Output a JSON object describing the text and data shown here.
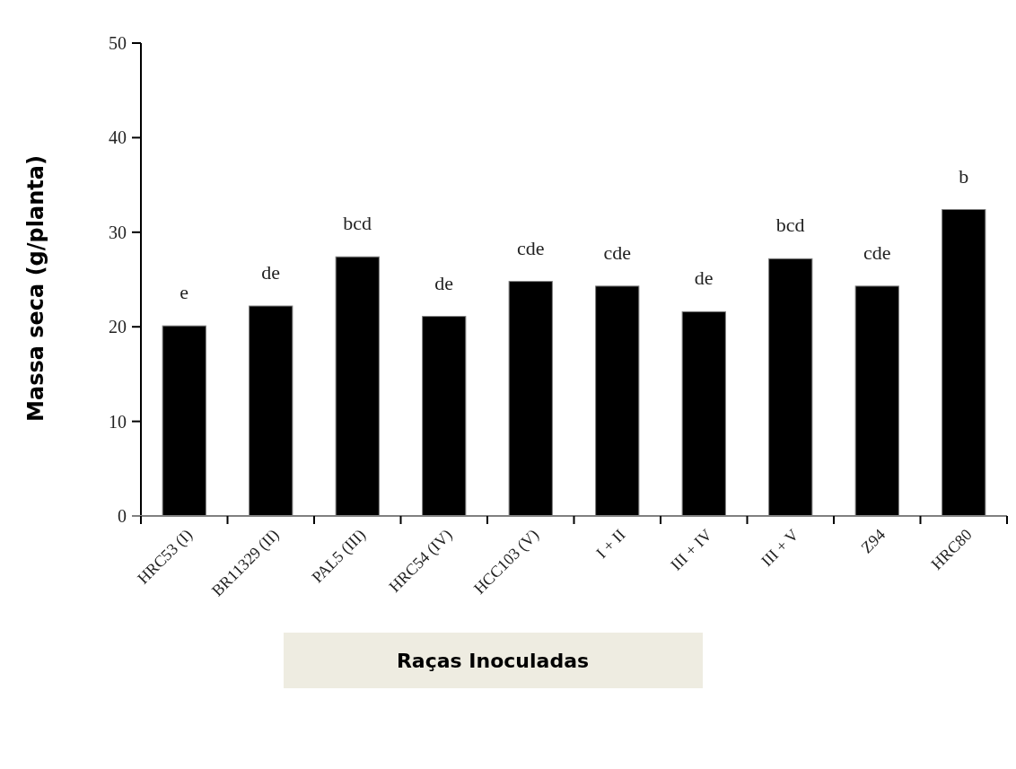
{
  "chart_data": {
    "type": "bar",
    "ylabel": "Massa seca (g/planta)",
    "xlabel": "Raças Inoculadas",
    "categories": [
      "HRC53 (I)",
      "BR11329 (II)",
      "PAL5 (III)",
      "HRC54 (IV)",
      "HCC103 (V)",
      "I + II",
      "III + IV",
      "III + V",
      "Z94",
      "HRC80"
    ],
    "values": [
      20.1,
      22.2,
      27.4,
      21.1,
      24.8,
      24.3,
      21.6,
      27.2,
      24.3,
      32.4
    ],
    "color": "#000000",
    "ylim": [
      0,
      50
    ],
    "yticks": [
      0,
      10,
      20,
      30,
      40,
      50
    ],
    "grid": false,
    "annotations": [
      {
        "text": "e",
        "x": "HRC53 (I)",
        "y": 20.1
      },
      {
        "text": "de",
        "x": "BR11329 (II)",
        "y": 22.2
      },
      {
        "text": "bcd",
        "x": "PAL5 (III)",
        "y": 27.4
      },
      {
        "text": "de",
        "x": "HRC54 (IV)",
        "y": 21.1
      },
      {
        "text": "cde",
        "x": "HCC103 (V)",
        "y": 24.8
      },
      {
        "text": "cde",
        "x": "I + II",
        "y": 24.3
      },
      {
        "text": "de",
        "x": "III + IV",
        "y": 21.6
      },
      {
        "text": "bcd",
        "x": "III + V",
        "y": 27.2
      },
      {
        "text": "cde",
        "x": "Z94",
        "y": 24.3
      },
      {
        "text": "b",
        "x": "HRC80",
        "y": 32.4
      }
    ]
  }
}
